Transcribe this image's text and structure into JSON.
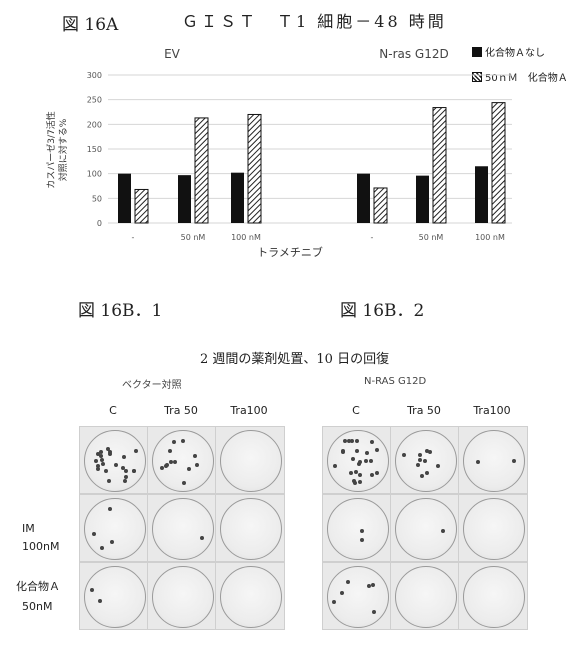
{
  "figure": {
    "label_a": "図 16A",
    "title": "ＧＩＳＴ　Ｔ1 細胞－48 時間",
    "label_b1": "図 16B．1",
    "label_b2": "図 16B．2"
  },
  "legend": {
    "item1": "化合物Ａなし",
    "item2": "50ｎＭ　化合物Ａ"
  },
  "chart_data": {
    "type": "bar",
    "ylabel_line1": "カスパーゼ3/7活性",
    "ylabel_line2": "対照に対する%",
    "xlabel": "トラメチニブ",
    "ylim": [
      0,
      300
    ],
    "yticks": [
      "0",
      "50",
      "100",
      "150",
      "200",
      "250",
      "300"
    ],
    "grid": true,
    "legend_position": "top-right",
    "panels": [
      {
        "title": "EV",
        "categories": [
          "-",
          "50 nM",
          "100 nM"
        ],
        "series": [
          {
            "name": "化合物Ａなし",
            "values": [
              100,
              97,
              102
            ]
          },
          {
            "name": "50ｎＭ　化合物Ａ",
            "values": [
              68,
              213,
              220
            ]
          }
        ]
      },
      {
        "title": "N-ras G12D",
        "categories": [
          "-",
          "50 nM",
          "100 nM"
        ],
        "series": [
          {
            "name": "化合物Ａなし",
            "values": [
              100,
              96,
              115
            ]
          },
          {
            "name": "50ｎＭ　化合物Ａ",
            "values": [
              71,
              234,
              244
            ]
          }
        ]
      }
    ]
  },
  "panel_b": {
    "subtitle": "2 週間の薬剤処置、10 日の回復",
    "left_title": "ベクター対照",
    "right_title": "N-RAS G12D",
    "col_labels": [
      "C",
      "Tra 50",
      "Tra100"
    ],
    "row_labels": {
      "row2_line1": "IM",
      "row2_line2": "100nM",
      "row3_line1": "化合物Ａ",
      "row3_line2": "50nM"
    }
  }
}
